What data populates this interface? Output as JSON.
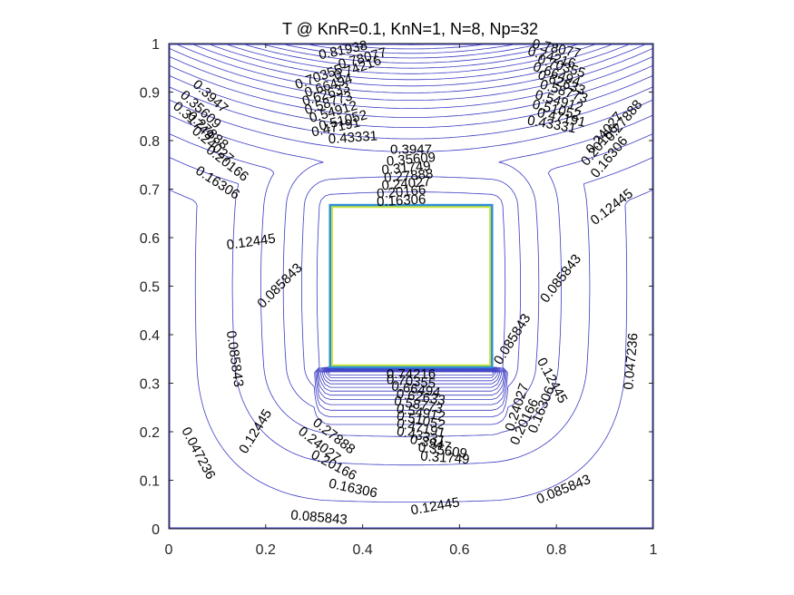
{
  "chart_data": {
    "type": "contour",
    "title": "T @ KnR=0.1, KnN=1, N=8, Np=32",
    "xlabel": "",
    "ylabel": "",
    "xlim": [
      0,
      1
    ],
    "ylim": [
      0,
      1
    ],
    "xticks": [
      0,
      0.2,
      0.4,
      0.6,
      0.8,
      1
    ],
    "xtick_labels": [
      "0",
      "0.2",
      "0.4",
      "0.6",
      "0.8",
      "1"
    ],
    "yticks": [
      0,
      0.1,
      0.2,
      0.3,
      0.4,
      0.5,
      0.6,
      0.7,
      0.8,
      0.9,
      1
    ],
    "ytick_labels": [
      "0",
      "0.1",
      "0.2",
      "0.3",
      "0.4",
      "0.5",
      "0.6",
      "0.7",
      "0.8",
      "0.9",
      "1"
    ],
    "grid": false,
    "colors": {
      "contour": "#3b3bc4",
      "box_outer": "#2e8fd6",
      "box_inner": "#c8e63c",
      "axis": "#262626"
    },
    "inner_box": {
      "x": [
        0.3333,
        0.6667
      ],
      "y": [
        0.3333,
        0.6667
      ]
    },
    "contour_labels": [
      {
        "text": "0.81938",
        "x": 0.36,
        "y": 0.985,
        "angle": -12
      },
      {
        "text": "0.78077",
        "x": 0.4,
        "y": 0.968,
        "angle": -15
      },
      {
        "text": "0.74216",
        "x": 0.39,
        "y": 0.948,
        "angle": -20
      },
      {
        "text": "0.70355",
        "x": 0.31,
        "y": 0.93,
        "angle": -20
      },
      {
        "text": "0.66494",
        "x": 0.33,
        "y": 0.912,
        "angle": -18
      },
      {
        "text": "0.62633",
        "x": 0.325,
        "y": 0.894,
        "angle": -18
      },
      {
        "text": "0.58773",
        "x": 0.33,
        "y": 0.876,
        "angle": -18
      },
      {
        "text": "0.54912",
        "x": 0.34,
        "y": 0.858,
        "angle": -16
      },
      {
        "text": "0.51052",
        "x": 0.36,
        "y": 0.84,
        "angle": -14
      },
      {
        "text": "0.47191",
        "x": 0.345,
        "y": 0.826,
        "angle": -12
      },
      {
        "text": "0.43331",
        "x": 0.38,
        "y": 0.805,
        "angle": -4
      },
      {
        "text": "0.78077",
        "x": 0.8,
        "y": 0.988,
        "angle": 12
      },
      {
        "text": "0.74216",
        "x": 0.79,
        "y": 0.97,
        "angle": 16
      },
      {
        "text": "0.70355",
        "x": 0.81,
        "y": 0.952,
        "angle": 18
      },
      {
        "text": "0.66494",
        "x": 0.8,
        "y": 0.935,
        "angle": 20
      },
      {
        "text": "0.62633",
        "x": 0.81,
        "y": 0.918,
        "angle": 20
      },
      {
        "text": "0.58773",
        "x": 0.815,
        "y": 0.9,
        "angle": 18
      },
      {
        "text": "0.54912",
        "x": 0.805,
        "y": 0.88,
        "angle": 16
      },
      {
        "text": "0.51052",
        "x": 0.8,
        "y": 0.862,
        "angle": 14
      },
      {
        "text": "0.47191",
        "x": 0.81,
        "y": 0.846,
        "angle": 12
      },
      {
        "text": "0.43331",
        "x": 0.79,
        "y": 0.832,
        "angle": 10
      },
      {
        "text": "0.3947",
        "x": 0.085,
        "y": 0.89,
        "angle": 42
      },
      {
        "text": "0.35609",
        "x": 0.065,
        "y": 0.863,
        "angle": 42
      },
      {
        "text": "0.31749",
        "x": 0.05,
        "y": 0.84,
        "angle": 42
      },
      {
        "text": "0.27888",
        "x": 0.08,
        "y": 0.82,
        "angle": 42
      },
      {
        "text": "0.24027",
        "x": 0.09,
        "y": 0.79,
        "angle": 40
      },
      {
        "text": "0.20166",
        "x": 0.12,
        "y": 0.752,
        "angle": 38
      },
      {
        "text": "0.16306",
        "x": 0.1,
        "y": 0.712,
        "angle": 33
      },
      {
        "text": "0.27888",
        "x": 0.94,
        "y": 0.84,
        "angle": -50
      },
      {
        "text": "0.24027",
        "x": 0.9,
        "y": 0.815,
        "angle": -50
      },
      {
        "text": "0.20166",
        "x": 0.89,
        "y": 0.79,
        "angle": -50
      },
      {
        "text": "0.16306",
        "x": 0.91,
        "y": 0.765,
        "angle": -50
      },
      {
        "text": "0.12445",
        "x": 0.915,
        "y": 0.662,
        "angle": -38
      },
      {
        "text": "0.3947",
        "x": 0.5,
        "y": 0.78,
        "angle": 0
      },
      {
        "text": "0.35609",
        "x": 0.5,
        "y": 0.76,
        "angle": -5
      },
      {
        "text": "0.31749",
        "x": 0.49,
        "y": 0.742,
        "angle": -5
      },
      {
        "text": "0.27888",
        "x": 0.495,
        "y": 0.726,
        "angle": -5
      },
      {
        "text": "0.24027",
        "x": 0.49,
        "y": 0.71,
        "angle": -5
      },
      {
        "text": "0.20166",
        "x": 0.48,
        "y": 0.693,
        "angle": -5
      },
      {
        "text": "0.16306",
        "x": 0.48,
        "y": 0.675,
        "angle": -3
      },
      {
        "text": "0.12445",
        "x": 0.17,
        "y": 0.59,
        "angle": -8
      },
      {
        "text": "0.085843",
        "x": 0.23,
        "y": 0.5,
        "angle": -45
      },
      {
        "text": "0.085843",
        "x": 0.81,
        "y": 0.515,
        "angle": -52
      },
      {
        "text": "0.085843",
        "x": 0.71,
        "y": 0.39,
        "angle": -58
      },
      {
        "text": "0.085843",
        "x": 0.135,
        "y": 0.35,
        "angle": 82
      },
      {
        "text": "0.047236",
        "x": 0.955,
        "y": 0.345,
        "angle": -85
      },
      {
        "text": "0.12445",
        "x": 0.79,
        "y": 0.305,
        "angle": 62
      },
      {
        "text": "0.24027",
        "x": 0.72,
        "y": 0.25,
        "angle": -72
      },
      {
        "text": "0.20166",
        "x": 0.735,
        "y": 0.22,
        "angle": -65
      },
      {
        "text": "0.16306",
        "x": 0.77,
        "y": 0.245,
        "angle": -68
      },
      {
        "text": "0.12445",
        "x": 0.18,
        "y": 0.2,
        "angle": -58
      },
      {
        "text": "0.27888",
        "x": 0.34,
        "y": 0.19,
        "angle": 38
      },
      {
        "text": "0.24027",
        "x": 0.31,
        "y": 0.172,
        "angle": 38
      },
      {
        "text": "0.20166",
        "x": 0.34,
        "y": 0.13,
        "angle": 28
      },
      {
        "text": "0.16306",
        "x": 0.38,
        "y": 0.082,
        "angle": 12
      },
      {
        "text": "0.12445",
        "x": 0.55,
        "y": 0.045,
        "angle": -10
      },
      {
        "text": "0.085843",
        "x": 0.31,
        "y": 0.022,
        "angle": 5
      },
      {
        "text": "0.085843",
        "x": 0.815,
        "y": 0.08,
        "angle": -22
      },
      {
        "text": "0.047236",
        "x": 0.06,
        "y": 0.155,
        "angle": 62
      },
      {
        "text": "0.74216",
        "x": 0.5,
        "y": 0.318,
        "angle": 0
      },
      {
        "text": "0.70355",
        "x": 0.5,
        "y": 0.302,
        "angle": 5
      },
      {
        "text": "0.66494",
        "x": 0.51,
        "y": 0.286,
        "angle": 8
      },
      {
        "text": "0.62633",
        "x": 0.52,
        "y": 0.27,
        "angle": 8
      },
      {
        "text": "0.58773",
        "x": 0.515,
        "y": 0.254,
        "angle": 10
      },
      {
        "text": "0.54912",
        "x": 0.52,
        "y": 0.238,
        "angle": 10
      },
      {
        "text": "0.51052",
        "x": 0.52,
        "y": 0.222,
        "angle": 12
      },
      {
        "text": "0.47191",
        "x": 0.52,
        "y": 0.206,
        "angle": 12
      },
      {
        "text": "0.43331",
        "x": 0.52,
        "y": 0.19,
        "angle": 12
      },
      {
        "text": "0.3947",
        "x": 0.54,
        "y": 0.175,
        "angle": 12
      },
      {
        "text": "0.35609",
        "x": 0.565,
        "y": 0.16,
        "angle": 8
      },
      {
        "text": "0.31749",
        "x": 0.57,
        "y": 0.145,
        "angle": 4
      }
    ]
  }
}
